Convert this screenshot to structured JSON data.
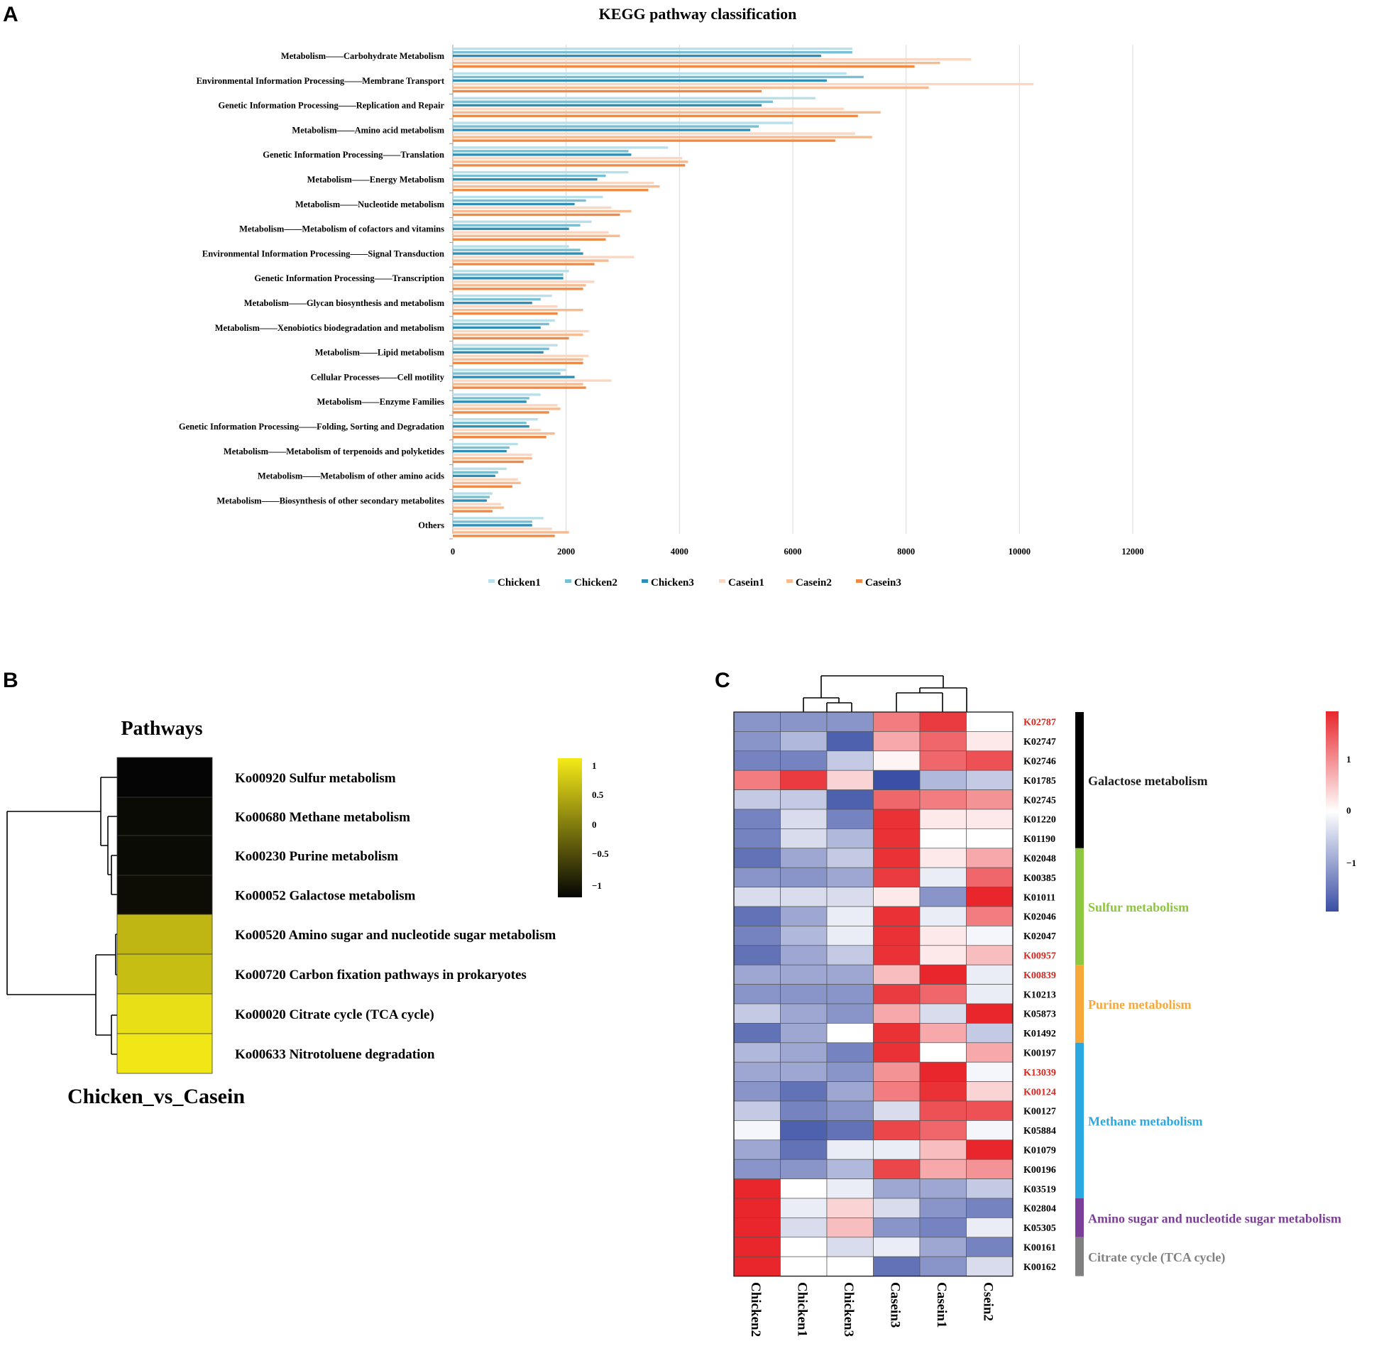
{
  "panels": {
    "a": "A",
    "b": "B",
    "c": "C"
  },
  "colors": {
    "Chicken1": "#b8e0ea",
    "Chicken2": "#79bfd3",
    "Chicken3": "#2f8eb5",
    "Casein1": "#fad7c2",
    "Casein2": "#f6bb91",
    "Casein3": "#ee8a45",
    "heat_blue": "#3a4fa5",
    "heat_white": "#ffffff",
    "heat_red": "#e8262b",
    "pathway_black": "#050505",
    "pathway_yellow": "#f5ea17"
  },
  "chart_data": [
    {
      "type": "bar",
      "orientation": "horizontal",
      "title": "KEGG pathway classification",
      "xlim": [
        0,
        12000
      ],
      "xticks": [
        0,
        2000,
        4000,
        6000,
        8000,
        10000,
        12000
      ],
      "tick_labels": [
        "0",
        "2000",
        "4000",
        "6000",
        "8000",
        "10000",
        "12000"
      ],
      "categories": [
        "Metabolism——Carbohydrate Metabolism",
        "Environmental Information Processing——Membrane Transport",
        "Genetic Information Processing——Replication and Repair",
        "Metabolism——Amino acid metabolism",
        "Genetic Information Processing——Translation",
        "Metabolism——Energy Metabolism",
        "Metabolism——Nucleotide metabolism",
        "Metabolism——Metabolism of cofactors and vitamins",
        "Environmental Information Processing——Signal Transduction",
        "Genetic Information Processing——Transcription",
        "Metabolism——Glycan biosynthesis and metabolism",
        "Metabolism——Xenobiotics biodegradation and metabolism",
        "Metabolism——Lipid metabolism",
        "Cellular Processes——Cell motility",
        "Metabolism——Enzyme Families",
        "Genetic Information Processing——Folding, Sorting and Degradation",
        "Metabolism——Metabolism of terpenoids and polyketides",
        "Metabolism——Metabolism of other amino acids",
        "Metabolism——Biosynthesis of other secondary metabolites",
        "Others"
      ],
      "series": [
        {
          "name": "Chicken1",
          "values": [
            7050,
            6950,
            6400,
            6000,
            3800,
            3100,
            2650,
            2450,
            2050,
            2050,
            1750,
            1800,
            1850,
            2000,
            1550,
            1500,
            1150,
            950,
            700,
            1600
          ]
        },
        {
          "name": "Chicken2",
          "values": [
            7050,
            7250,
            5650,
            5400,
            3100,
            2700,
            2350,
            2250,
            2250,
            1950,
            1550,
            1700,
            1700,
            1900,
            1350,
            1300,
            1000,
            800,
            650,
            1400
          ]
        },
        {
          "name": "Chicken3",
          "values": [
            6500,
            6600,
            5450,
            5250,
            3150,
            2550,
            2150,
            2050,
            2300,
            1950,
            1400,
            1550,
            1600,
            2150,
            1300,
            1350,
            950,
            750,
            600,
            1400
          ]
        },
        {
          "name": "Casein1",
          "values": [
            9150,
            10250,
            6900,
            7100,
            4050,
            3550,
            2800,
            2750,
            3200,
            2500,
            1850,
            2400,
            2400,
            2800,
            1850,
            1550,
            1400,
            1150,
            850,
            1750
          ]
        },
        {
          "name": "Casein2",
          "values": [
            8600,
            8400,
            7550,
            7400,
            4150,
            3650,
            3150,
            2950,
            2750,
            2350,
            2300,
            2300,
            2300,
            2300,
            1900,
            1800,
            1400,
            1200,
            900,
            2050
          ]
        },
        {
          "name": "Casein3",
          "values": [
            8150,
            5450,
            7150,
            6750,
            4100,
            3450,
            2950,
            2700,
            2500,
            2300,
            1850,
            2050,
            2300,
            2350,
            1700,
            1650,
            1250,
            1050,
            700,
            1800
          ]
        }
      ],
      "legend": [
        "Chicken1",
        "Chicken2",
        "Chicken3",
        "Casein1",
        "Casein2",
        "Casein3"
      ]
    },
    {
      "type": "heatmap",
      "title": "Pathways",
      "column": "Chicken_vs_Casein",
      "rows": [
        {
          "label": "Ko00920 Sulfur metabolism",
          "value": -1.0
        },
        {
          "label": "Ko00680 Methane metabolism",
          "value": -0.95
        },
        {
          "label": "Ko00230 Purine metabolism",
          "value": -0.95
        },
        {
          "label": "Ko00052 Galactose metabolism",
          "value": -0.93
        },
        {
          "label": "Ko00520 Amino sugar and nucleotide sugar metabolism",
          "value": 0.55
        },
        {
          "label": "Ko00720 Carbon fixation pathways in prokaryotes",
          "value": 0.62
        },
        {
          "label": "Ko00020 Citrate cycle (TCA cycle)",
          "value": 0.9
        },
        {
          "label": "Ko00633 Nitrotoluene degradation",
          "value": 0.97
        }
      ],
      "scale": {
        "min": -1,
        "max": 1,
        "ticks": [
          "1",
          "0.5",
          "0",
          "−0.5",
          "−1"
        ]
      }
    },
    {
      "type": "heatmap",
      "columns": [
        "Chicken2",
        "Chicken1",
        "Chicken3",
        "Casein3",
        "Casein1",
        "Csein2"
      ],
      "rows": [
        "K02787",
        "K02747",
        "K02746",
        "K01785",
        "K02745",
        "K01220",
        "K01190",
        "K02048",
        "K00385",
        "K01011",
        "K02046",
        "K02047",
        "K00957",
        "K00839",
        "K10213",
        "K05873",
        "K01492",
        "K00197",
        "K13039",
        "K00124",
        "K00127",
        "K05884",
        "K01079",
        "K00196",
        "K03519",
        "K02804",
        "K05305",
        "K00161",
        "K00162"
      ],
      "highlighted_rows": [
        "K02787",
        "K00957",
        "K00839",
        "K13039",
        "K00124"
      ],
      "values": [
        [
          -0.6,
          -0.6,
          -0.6,
          0.6,
          0.9,
          0.0
        ],
        [
          -0.6,
          -0.4,
          -0.9,
          0.4,
          0.7,
          0.1
        ],
        [
          -0.7,
          -0.7,
          -0.3,
          0.05,
          0.7,
          0.8
        ],
        [
          0.6,
          0.9,
          0.2,
          -1.0,
          -0.4,
          -0.3
        ],
        [
          -0.3,
          -0.3,
          -0.9,
          0.7,
          0.6,
          0.5
        ],
        [
          -0.7,
          -0.2,
          -0.7,
          0.95,
          0.1,
          0.1
        ],
        [
          -0.7,
          -0.2,
          -0.4,
          0.95,
          0.0,
          0.0
        ],
        [
          -0.8,
          -0.5,
          -0.3,
          0.95,
          0.1,
          0.4
        ],
        [
          -0.6,
          -0.6,
          -0.5,
          0.9,
          -0.1,
          0.7
        ],
        [
          -0.2,
          -0.2,
          -0.2,
          0.1,
          -0.6,
          1.0
        ],
        [
          -0.8,
          -0.5,
          -0.1,
          0.95,
          -0.1,
          0.6
        ],
        [
          -0.7,
          -0.4,
          -0.1,
          0.95,
          0.1,
          -0.05
        ],
        [
          -0.8,
          -0.5,
          -0.3,
          0.95,
          0.1,
          0.3
        ],
        [
          -0.5,
          -0.5,
          -0.5,
          0.3,
          1.0,
          -0.1
        ],
        [
          -0.6,
          -0.6,
          -0.6,
          0.9,
          0.7,
          -0.1
        ],
        [
          -0.3,
          -0.5,
          -0.6,
          0.4,
          -0.2,
          1.0
        ],
        [
          -0.8,
          -0.5,
          0.0,
          0.95,
          0.4,
          -0.3
        ],
        [
          -0.4,
          -0.5,
          -0.7,
          0.95,
          0.0,
          0.4
        ],
        [
          -0.5,
          -0.5,
          -0.6,
          0.5,
          1.0,
          -0.05
        ],
        [
          -0.6,
          -0.8,
          -0.5,
          0.6,
          0.95,
          0.2
        ],
        [
          -0.3,
          -0.7,
          -0.6,
          -0.2,
          0.8,
          0.8
        ],
        [
          -0.05,
          -0.9,
          -0.8,
          0.85,
          0.7,
          -0.05
        ],
        [
          -0.5,
          -0.8,
          -0.1,
          -0.1,
          0.3,
          1.0
        ],
        [
          -0.6,
          -0.6,
          -0.4,
          0.85,
          0.4,
          0.5
        ],
        [
          1.0,
          0.0,
          -0.1,
          -0.5,
          -0.5,
          -0.3
        ],
        [
          1.0,
          -0.1,
          0.2,
          -0.2,
          -0.6,
          -0.7
        ],
        [
          1.0,
          -0.2,
          0.3,
          -0.6,
          -0.7,
          -0.1
        ],
        [
          1.0,
          0.0,
          -0.2,
          -0.1,
          -0.5,
          -0.7
        ],
        [
          1.0,
          0.0,
          0.0,
          -0.8,
          -0.6,
          -0.2
        ]
      ],
      "scale": {
        "min": -1,
        "max": 1,
        "ticks": [
          "1",
          "0",
          "−1"
        ]
      },
      "groups": [
        {
          "label": "Galactose metabolism",
          "color": "#000000",
          "rows": 7
        },
        {
          "label": "Sulfur metabolism",
          "color": "#8dc63f",
          "rows": 6
        },
        {
          "label": "Purine metabolism",
          "color": "#f7a839",
          "rows": 4
        },
        {
          "label": "Methane metabolism",
          "color": "#29a9e0",
          "rows": 8
        },
        {
          "label": "Amino sugar and nucleotide sugar metabolism",
          "color": "#7b3f98",
          "rows": 2
        },
        {
          "label": "Citrate cycle (TCA cycle)",
          "color": "#808080",
          "rows": 2
        }
      ]
    }
  ]
}
